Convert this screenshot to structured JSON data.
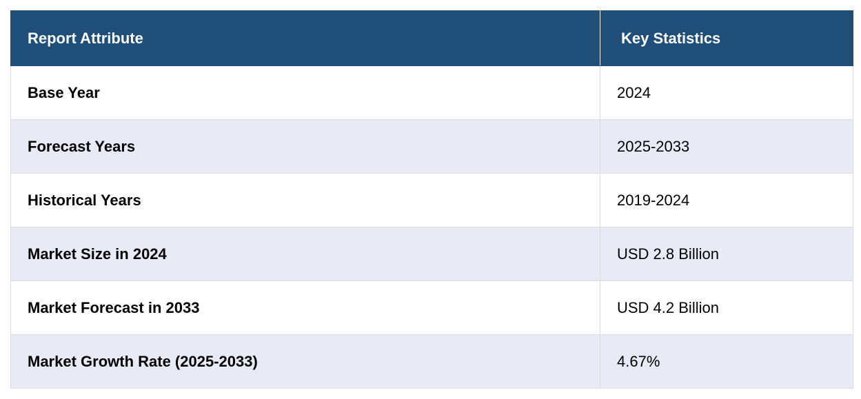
{
  "table": {
    "headers": [
      "Report Attribute",
      "Key Statistics"
    ],
    "rows": [
      [
        "Base Year",
        "2024"
      ],
      [
        "Forecast Years",
        "2025-2033"
      ],
      [
        "Historical Years",
        "2019-2024"
      ],
      [
        "Market Size in 2024",
        "USD 2.8 Billion"
      ],
      [
        "Market Forecast in 2033",
        "USD 4.2 Billion"
      ],
      [
        "Market Growth Rate (2025-2033)",
        "4.67%"
      ]
    ]
  },
  "colors": {
    "header_bg": "#1f4e79",
    "header_text": "#ffffff",
    "row_alt_bg": "#e8eaf5",
    "row_bg": "#ffffff"
  }
}
